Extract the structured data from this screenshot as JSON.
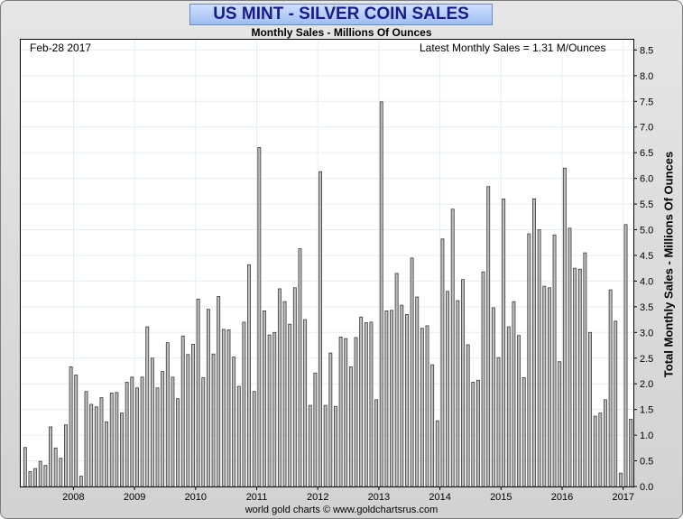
{
  "title": "US MINT - SILVER COIN SALES",
  "subtitle": "Monthly Sales - Millions Of Ounces",
  "date_label": "Feb-28  2017",
  "latest_label": "Latest Monthly Sales = 1.31 M/Ounces",
  "credit": "world gold charts © www.goldchartsrus.com",
  "colors": {
    "bar_fill": "#bdbdbd",
    "bar_stroke": "#3a3a3a",
    "title_text": "#1a1a8c",
    "grid": "#e4efef"
  },
  "chart_data": {
    "type": "bar",
    "title": "US MINT - SILVER COIN SALES",
    "subtitle": "Monthly Sales - Millions Of Ounces",
    "ylabel": "Total Monthly Sales - Millions Of Ounces",
    "xlabel": "",
    "ylim": [
      0,
      8.7
    ],
    "y_ticks": [
      "0.0",
      "0.5",
      "1.0",
      "1.5",
      "2.0",
      "2.5",
      "3.0",
      "3.5",
      "4.0",
      "4.5",
      "5.0",
      "5.5",
      "6.0",
      "6.5",
      "7.0",
      "7.5",
      "8.0",
      "8.5"
    ],
    "x_tick_labels": [
      "2008",
      "2009",
      "2010",
      "2011",
      "2012",
      "2013",
      "2014",
      "2015",
      "2016",
      "2017"
    ],
    "grid": true,
    "start_month": "2007-03",
    "end_month": "2017-02",
    "values": [
      0.76,
      0.29,
      0.35,
      0.49,
      0.41,
      1.16,
      0.75,
      0.55,
      1.2,
      2.33,
      2.17,
      0.2,
      1.85,
      1.6,
      1.55,
      1.73,
      1.26,
      1.82,
      1.83,
      1.43,
      2.03,
      2.13,
      1.92,
      2.13,
      3.11,
      2.5,
      1.92,
      2.24,
      2.8,
      2.13,
      1.71,
      2.93,
      2.57,
      2.77,
      3.65,
      2.12,
      3.45,
      2.58,
      3.7,
      3.06,
      3.05,
      2.52,
      1.95,
      3.2,
      4.32,
      1.85,
      6.6,
      3.42,
      2.95,
      3.0,
      3.85,
      3.6,
      3.16,
      3.87,
      4.63,
      3.25,
      1.58,
      2.21,
      6.13,
      1.58,
      2.6,
      1.56,
      2.91,
      2.88,
      2.33,
      2.9,
      3.3,
      3.19,
      3.2,
      1.69,
      7.49,
      3.42,
      3.43,
      4.15,
      3.53,
      3.35,
      4.45,
      3.69,
      3.08,
      3.13,
      2.37,
      1.28,
      4.82,
      3.8,
      5.4,
      3.62,
      4.03,
      2.76,
      2.03,
      2.07,
      4.18,
      5.84,
      3.48,
      2.51,
      5.6,
      3.11,
      3.6,
      2.94,
      2.12,
      4.92,
      5.6,
      5.0,
      3.9,
      3.87,
      4.9,
      2.43,
      6.2,
      5.03,
      4.25,
      4.23,
      4.55,
      3.0,
      1.37,
      1.43,
      1.69,
      3.83,
      3.22,
      0.26,
      5.1,
      1.31
    ]
  }
}
